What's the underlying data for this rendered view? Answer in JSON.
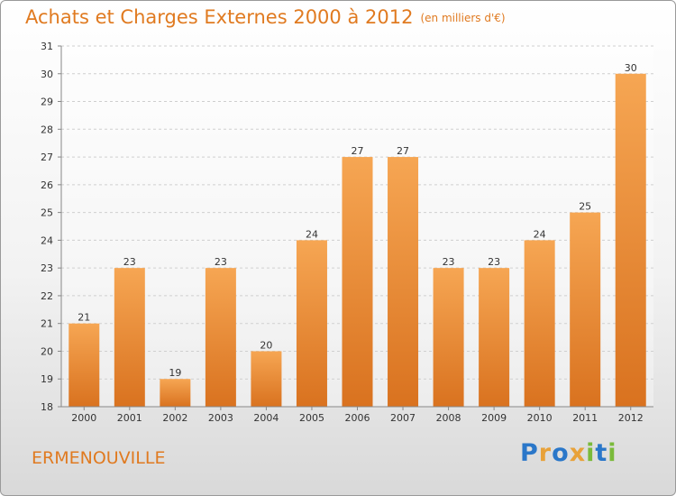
{
  "title": "Achats et Charges Externes 2000 à 2012",
  "subtitle": "(en milliers d'€)",
  "place": "ERMENOUVILLE",
  "logo": {
    "text": "Proxiti",
    "letters": [
      {
        "ch": "P",
        "color": "#2a77c9"
      },
      {
        "ch": "r",
        "color": "#e8a23a"
      },
      {
        "ch": "o",
        "color": "#2a77c9"
      },
      {
        "ch": "x",
        "color": "#e8a23a"
      },
      {
        "ch": "i",
        "color": "#7aba3a"
      },
      {
        "ch": "t",
        "color": "#2a77c9"
      },
      {
        "ch": "i",
        "color": "#7aba3a"
      }
    ]
  },
  "colors": {
    "bar_light": "#f6a653",
    "bar_dark": "#d9721f",
    "text_accent": "#e07a20"
  },
  "chart_data": {
    "type": "bar",
    "categories": [
      "2000",
      "2001",
      "2002",
      "2003",
      "2004",
      "2005",
      "2006",
      "2007",
      "2008",
      "2009",
      "2010",
      "2011",
      "2012"
    ],
    "values": [
      21,
      23,
      19,
      23,
      20,
      24,
      27,
      27,
      23,
      23,
      24,
      25,
      30
    ],
    "title": "Achats et Charges Externes 2000 à 2012",
    "xlabel": "",
    "ylabel": "",
    "ylim": [
      18,
      31
    ],
    "yticks": [
      18,
      19,
      20,
      21,
      22,
      23,
      24,
      25,
      26,
      27,
      28,
      29,
      30,
      31
    ],
    "grid": true,
    "data_labels": true
  }
}
